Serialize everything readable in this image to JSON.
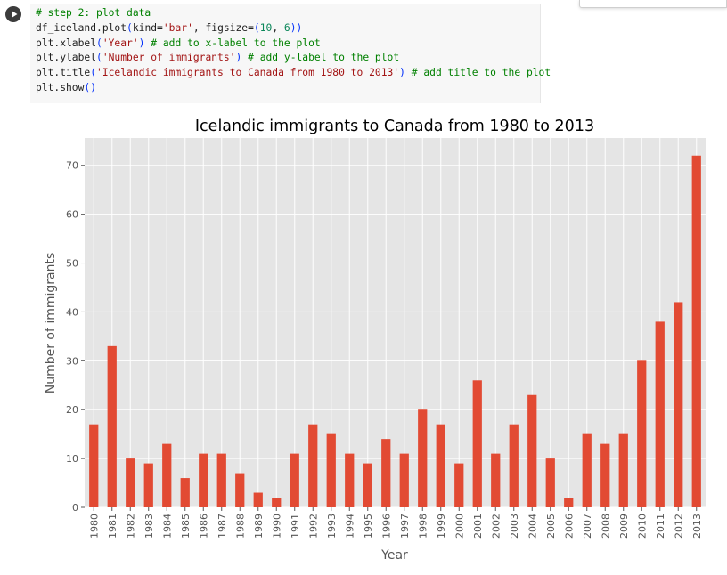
{
  "notebook": {
    "run_button_icon": "play-icon",
    "code_lines": [
      [
        {
          "t": "# step 2: plot data",
          "c": "comment"
        }
      ],
      [
        {
          "t": "df_iceland.plot",
          "c": "plain"
        },
        {
          "t": "(",
          "c": "paren"
        },
        {
          "t": "kind=",
          "c": "plain"
        },
        {
          "t": "'bar'",
          "c": "string"
        },
        {
          "t": ", figsize=",
          "c": "plain"
        },
        {
          "t": "(",
          "c": "paren"
        },
        {
          "t": "10",
          "c": "number"
        },
        {
          "t": ", ",
          "c": "plain"
        },
        {
          "t": "6",
          "c": "number"
        },
        {
          "t": "))",
          "c": "paren"
        }
      ],
      [
        {
          "t": "plt.xlabel",
          "c": "plain"
        },
        {
          "t": "(",
          "c": "paren"
        },
        {
          "t": "'Year'",
          "c": "string"
        },
        {
          "t": ")",
          "c": "paren"
        },
        {
          "t": " ",
          "c": "plain"
        },
        {
          "t": "# add to x-label to the plot",
          "c": "comment"
        }
      ],
      [
        {
          "t": "plt.ylabel",
          "c": "plain"
        },
        {
          "t": "(",
          "c": "paren"
        },
        {
          "t": "'Number of immigrants'",
          "c": "string"
        },
        {
          "t": ")",
          "c": "paren"
        },
        {
          "t": " ",
          "c": "plain"
        },
        {
          "t": "# add y-label to the plot",
          "c": "comment"
        }
      ],
      [
        {
          "t": "plt.title",
          "c": "plain"
        },
        {
          "t": "(",
          "c": "paren"
        },
        {
          "t": "'Icelandic immigrants to Canada from 1980 to 2013'",
          "c": "string"
        },
        {
          "t": ")",
          "c": "paren"
        },
        {
          "t": " ",
          "c": "plain"
        },
        {
          "t": "# add title to the plot",
          "c": "comment"
        }
      ],
      [
        {
          "t": "plt.show",
          "c": "plain"
        },
        {
          "t": "()",
          "c": "paren"
        }
      ]
    ]
  },
  "chart_data": {
    "type": "bar",
    "title": "Icelandic immigrants to Canada from 1980 to 2013",
    "xlabel": "Year",
    "ylabel": "Number of immigrants",
    "categories": [
      "1980",
      "1981",
      "1982",
      "1983",
      "1984",
      "1985",
      "1986",
      "1987",
      "1988",
      "1989",
      "1990",
      "1991",
      "1992",
      "1993",
      "1994",
      "1995",
      "1996",
      "1997",
      "1998",
      "1999",
      "2000",
      "2001",
      "2002",
      "2003",
      "2004",
      "2005",
      "2006",
      "2007",
      "2008",
      "2009",
      "2010",
      "2011",
      "2012",
      "2013"
    ],
    "values": [
      17,
      33,
      10,
      9,
      13,
      6,
      11,
      11,
      7,
      3,
      2,
      11,
      17,
      15,
      11,
      9,
      14,
      11,
      20,
      17,
      9,
      26,
      11,
      17,
      23,
      10,
      2,
      15,
      13,
      15,
      30,
      38,
      42,
      72
    ],
    "yticks": [
      0,
      10,
      20,
      30,
      40,
      50,
      60,
      70
    ],
    "ylim": [
      0,
      75.6
    ],
    "grid": true,
    "legend": "none",
    "bar_color": "#e24a33",
    "plot_background": "#e5e5e5",
    "grid_color": "#ffffff"
  }
}
